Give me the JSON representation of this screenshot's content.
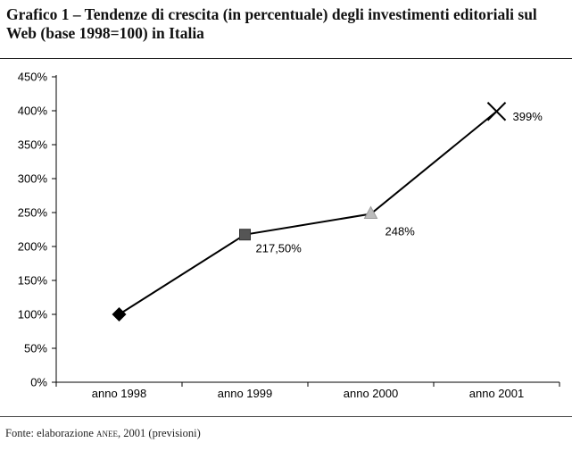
{
  "title": "Grafico 1 – Tendenze di crescita (in percentuale) degli investimenti editoriali sul Web (base 1998=100) in Italia",
  "source": {
    "prefix": "Fonte: elaborazione ",
    "org": "anee",
    "suffix": ", 2001 (previsioni)"
  },
  "chart_data": {
    "type": "line",
    "categories": [
      "anno 1998",
      "anno 1999",
      "anno 2000",
      "anno 2001"
    ],
    "series": [
      {
        "values": [
          100,
          217.5,
          248,
          399
        ],
        "data_labels": [
          "",
          "217,50%",
          "248%",
          "399%"
        ],
        "markers": [
          "diamond",
          "square",
          "triangle",
          "x"
        ],
        "marker_colors": [
          "#000000",
          "#555555",
          "#bbbbbb",
          "#000000"
        ]
      }
    ],
    "yticks": [
      "0%",
      "50%",
      "100%",
      "150%",
      "200%",
      "250%",
      "300%",
      "350%",
      "400%",
      "450%"
    ],
    "ylim": [
      0,
      450
    ],
    "grid": false,
    "legend": "none",
    "line_color": "#000000"
  }
}
